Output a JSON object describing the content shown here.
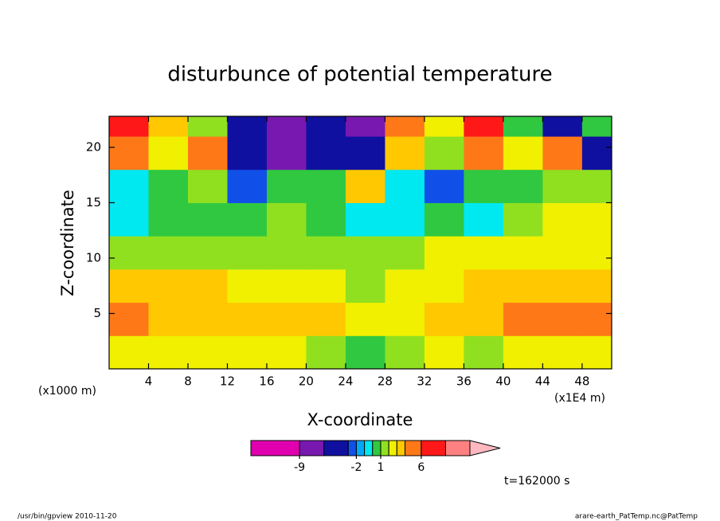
{
  "chart_data": {
    "type": "contour",
    "title": "disturbunce of potential temperature",
    "xlabel": "X-coordinate",
    "ylabel": "Z-coordinate",
    "xunit_left": "(x1000 m)",
    "xunit_right": "(x1E4 m)",
    "annotation": "t=162000 s",
    "xlim": [
      0,
      51
    ],
    "ylim": [
      0,
      22.8
    ],
    "xticks": [
      4,
      8,
      12,
      16,
      20,
      24,
      28,
      32,
      36,
      40,
      44,
      48
    ],
    "yticks": [
      5,
      10,
      15,
      20
    ],
    "x": [
      2,
      6,
      10,
      14,
      18,
      22,
      26,
      30,
      34,
      38,
      42,
      46,
      50
    ],
    "y": [
      1.5,
      4.5,
      7.5,
      10.5,
      13.5,
      16.5,
      19.5,
      22.5
    ],
    "z": [
      [
        2,
        2,
        2,
        2,
        2,
        1.5,
        0.5,
        1.5,
        2,
        1.5,
        2,
        2,
        2
      ],
      [
        4,
        3.5,
        3,
        3,
        3,
        3,
        2,
        2.5,
        3,
        3,
        4,
        4.5,
        4.5
      ],
      [
        3,
        3,
        3,
        2.5,
        2,
        2,
        1.5,
        2,
        2.5,
        3,
        3,
        3,
        3
      ],
      [
        1.5,
        1,
        1,
        1.5,
        1.5,
        1.5,
        1,
        1.5,
        2,
        2,
        2,
        2,
        2
      ],
      [
        -0.5,
        0.5,
        0.5,
        0.5,
        1,
        0.5,
        -0.5,
        -0.5,
        0.5,
        -0.5,
        1.5,
        2,
        2
      ],
      [
        -0.5,
        0.5,
        1,
        -2.5,
        0.5,
        0.5,
        3,
        -0.5,
        -2.5,
        0.5,
        0.5,
        1,
        1.5
      ],
      [
        5,
        2,
        4,
        -4,
        -7,
        -5,
        -5,
        3,
        1,
        4,
        2,
        4,
        -4
      ],
      [
        6,
        3,
        1,
        -4,
        -8,
        -6,
        -8,
        4,
        2,
        6,
        0.5,
        -4,
        0.5
      ]
    ],
    "levels": [
      -15,
      -9,
      -6,
      -3,
      -2,
      -1,
      0,
      1,
      2,
      3,
      4,
      6,
      9,
      12
    ],
    "colors": [
      "#e000b0",
      "#7818b0",
      "#1010a0",
      "#1050e8",
      "#00a8f8",
      "#00e8f0",
      "#30c840",
      "#90e020",
      "#f0f000",
      "#ffc800",
      "#ff7818",
      "#ff1818",
      "#ff8080",
      "#ffb8c0"
    ],
    "colorbar_ticks": [
      -9,
      -2,
      1,
      6
    ]
  },
  "footer": {
    "left": "/usr/bin/gpview  2010-11-20",
    "right": "arare-earth_PatTemp.nc@PatTemp"
  }
}
